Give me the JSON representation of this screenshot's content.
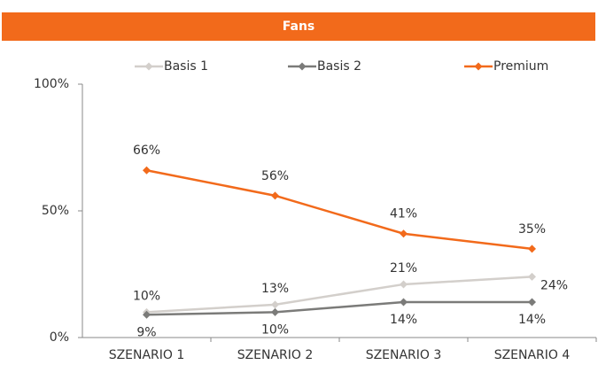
{
  "chart_data": {
    "type": "line",
    "title": "Fans",
    "categories": [
      "SZENARIO 1",
      "SZENARIO 2",
      "SZENARIO 3",
      "SZENARIO 4"
    ],
    "series": [
      {
        "name": "Basis 1",
        "color": "#d3cfcb",
        "values": [
          10,
          13,
          21,
          24
        ],
        "value_labels": [
          "10%",
          "13%",
          "21%",
          "24%"
        ]
      },
      {
        "name": "Basis 2",
        "color": "#7b7b79",
        "values": [
          9,
          10,
          14,
          14
        ],
        "value_labels": [
          "9%",
          "10%",
          "14%",
          "14%"
        ]
      },
      {
        "name": "Premium",
        "color": "#f26a1b",
        "values": [
          66,
          56,
          41,
          35
        ],
        "value_labels": [
          "66%",
          "56%",
          "41%",
          "35%"
        ]
      }
    ],
    "ylim": [
      0,
      100
    ],
    "yticks": [
      {
        "value": 0,
        "label": "0%"
      },
      {
        "value": 50,
        "label": "50%"
      },
      {
        "value": 100,
        "label": "100%"
      }
    ],
    "legend": "top",
    "grid": false
  }
}
